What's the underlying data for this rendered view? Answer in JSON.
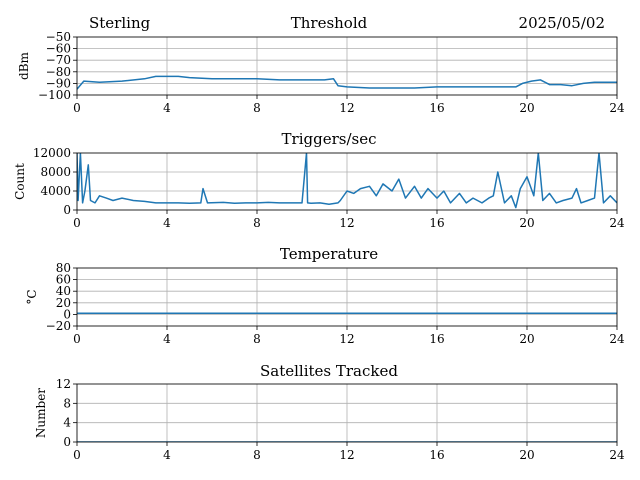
{
  "header": {
    "station": "Sterling",
    "date": "2025/05/02"
  },
  "colors": {
    "series": "#1f77b4"
  },
  "chart_data": [
    {
      "type": "line",
      "title": "Threshold",
      "ylabel": "dBm",
      "xlim": [
        0,
        24
      ],
      "ylim": [
        -100,
        -50
      ],
      "xticks": [
        0,
        4,
        8,
        12,
        16,
        20,
        24
      ],
      "yticks": [
        -100,
        -90,
        -80,
        -70,
        -60,
        -50
      ],
      "ytick_labels": [
        "−100",
        "−90",
        "−80",
        "−70",
        "−60",
        "−50"
      ],
      "grid": true,
      "x": [
        0,
        0.3,
        1,
        2,
        3,
        3.5,
        4,
        4.5,
        5,
        6,
        7,
        8,
        9,
        10,
        11,
        11.4,
        11.6,
        12,
        13,
        14,
        15,
        16,
        17,
        18,
        19,
        19.5,
        19.8,
        20.2,
        20.6,
        21,
        21.5,
        22,
        22.5,
        23,
        23.5,
        24
      ],
      "y": [
        -95,
        -88,
        -89,
        -88,
        -86,
        -84,
        -84,
        -84,
        -85,
        -86,
        -86,
        -86,
        -87,
        -87,
        -87,
        -86,
        -92,
        -93,
        -94,
        -94,
        -94,
        -93,
        -93,
        -93,
        -93,
        -93,
        -90,
        -88,
        -87,
        -91,
        -91,
        -92,
        -90,
        -89,
        -89,
        -89
      ]
    },
    {
      "type": "line",
      "title": "Triggers/sec",
      "ylabel": "Count",
      "xlim": [
        0,
        24
      ],
      "ylim": [
        0,
        12000
      ],
      "xticks": [
        0,
        4,
        8,
        12,
        16,
        20,
        24
      ],
      "yticks": [
        0,
        4000,
        8000,
        12000
      ],
      "ytick_labels": [
        "0",
        "4000",
        "8000",
        "12000"
      ],
      "grid": true,
      "x": [
        0,
        0.05,
        0.15,
        0.25,
        0.35,
        0.5,
        0.6,
        0.8,
        1.0,
        1.3,
        1.6,
        2.0,
        2.5,
        3.0,
        3.5,
        4.0,
        4.5,
        5.0,
        5.5,
        5.6,
        5.8,
        6.5,
        7.0,
        7.5,
        8.0,
        8.5,
        9.0,
        9.5,
        10.0,
        10.2,
        10.25,
        10.4,
        10.8,
        11.2,
        11.6,
        11.7,
        12.0,
        12.3,
        12.6,
        13.0,
        13.3,
        13.6,
        14.0,
        14.3,
        14.6,
        15.0,
        15.3,
        15.6,
        16.0,
        16.3,
        16.6,
        17.0,
        17.3,
        17.6,
        18.0,
        18.3,
        18.5,
        18.7,
        19.0,
        19.3,
        19.5,
        19.7,
        20.0,
        20.3,
        20.5,
        20.7,
        21.0,
        21.3,
        21.6,
        22.0,
        22.2,
        22.4,
        22.7,
        23.0,
        23.2,
        23.4,
        23.7,
        24.0
      ],
      "y": [
        12000,
        2000,
        12000,
        1500,
        4000,
        9500,
        2000,
        1500,
        3000,
        2500,
        2000,
        2500,
        2000,
        1800,
        1500,
        1500,
        1500,
        1400,
        1500,
        4500,
        1500,
        1600,
        1400,
        1500,
        1500,
        1600,
        1500,
        1500,
        1500,
        12000,
        1500,
        1400,
        1500,
        1200,
        1500,
        2000,
        4000,
        3500,
        4500,
        5000,
        3000,
        5500,
        4000,
        6500,
        2500,
        5000,
        2500,
        4500,
        2500,
        4000,
        1500,
        3500,
        1500,
        2500,
        1500,
        2500,
        3000,
        8000,
        1500,
        3000,
        500,
        4500,
        7000,
        3000,
        12000,
        2000,
        3500,
        1500,
        2000,
        2500,
        4500,
        1500,
        2000,
        2500,
        12000,
        1500,
        3000,
        1500
      ]
    },
    {
      "type": "line",
      "title": "Temperature",
      "ylabel": "°C",
      "xlim": [
        0,
        24
      ],
      "ylim": [
        -20,
        80
      ],
      "xticks": [
        0,
        4,
        8,
        12,
        16,
        20,
        24
      ],
      "yticks": [
        -20,
        0,
        20,
        40,
        60,
        80
      ],
      "ytick_labels": [
        "−20",
        "0",
        "20",
        "40",
        "60",
        "80"
      ],
      "grid": true,
      "x": [
        0,
        24
      ],
      "y": [
        2,
        2
      ]
    },
    {
      "type": "line",
      "title": "Satellites Tracked",
      "ylabel": "Number",
      "xlim": [
        0,
        24
      ],
      "ylim": [
        0,
        12
      ],
      "xticks": [
        0,
        4,
        8,
        12,
        16,
        20,
        24
      ],
      "yticks": [
        0,
        4,
        8,
        12
      ],
      "ytick_labels": [
        "0",
        "4",
        "8",
        "12"
      ],
      "grid": true,
      "x": [
        0,
        24
      ],
      "y": [
        0,
        0
      ]
    }
  ]
}
